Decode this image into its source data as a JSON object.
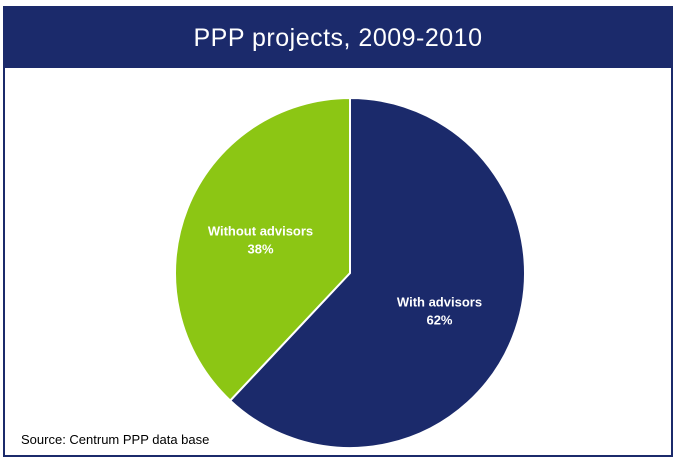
{
  "chart_data": {
    "type": "pie",
    "title": "PPP projects, 2009-2010",
    "slices": [
      {
        "label": "With advisors",
        "value": 62,
        "value_label": "62%",
        "color": "#1b2a6b"
      },
      {
        "label": "Without advisors",
        "value": 38,
        "value_label": "38%",
        "color": "#8cc614"
      }
    ]
  },
  "source": "Source: Centrum PPP data base"
}
